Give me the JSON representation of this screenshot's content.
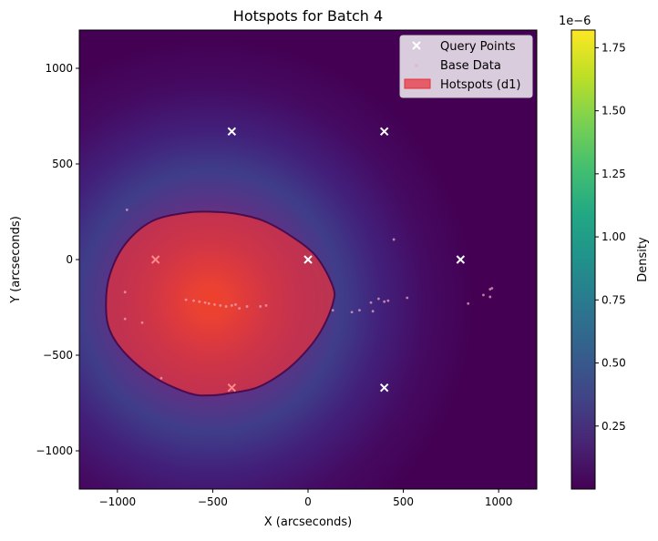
{
  "chart_data": {
    "type": "scatter",
    "title": "Hotspots for Batch 4",
    "xlabel": "X (arcseconds)",
    "ylabel": "Y (arcseconds)",
    "xlim": [
      -1200,
      1200
    ],
    "ylim": [
      -1200,
      1200
    ],
    "x_ticks": [
      -1000,
      -500,
      0,
      500,
      1000
    ],
    "x_tick_labels": [
      "−1000",
      "−500",
      "0",
      "500",
      "1000"
    ],
    "y_ticks": [
      -1000,
      -500,
      0,
      500,
      1000
    ],
    "y_tick_labels": [
      "−1000",
      "−500",
      "0",
      "500",
      "1000"
    ],
    "grid": false,
    "legend_position": "top-right",
    "legend": [
      "Query Points",
      "Base Data",
      "Hotspots (d1)"
    ],
    "density_peak": {
      "x": -510,
      "y": -220
    },
    "query_points": [
      {
        "x": -400,
        "y": 670
      },
      {
        "x": 400,
        "y": 670
      },
      {
        "x": -800,
        "y": 0
      },
      {
        "x": 0,
        "y": 0
      },
      {
        "x": 800,
        "y": 0
      },
      {
        "x": -400,
        "y": -670
      },
      {
        "x": 400,
        "y": -670
      }
    ],
    "base_data": [
      {
        "x": -950,
        "y": 260
      },
      {
        "x": -960,
        "y": -170
      },
      {
        "x": -960,
        "y": -310
      },
      {
        "x": -870,
        "y": -330
      },
      {
        "x": -770,
        "y": -620
      },
      {
        "x": -640,
        "y": -210
      },
      {
        "x": -600,
        "y": -215
      },
      {
        "x": -570,
        "y": -220
      },
      {
        "x": -540,
        "y": -225
      },
      {
        "x": -520,
        "y": -230
      },
      {
        "x": -490,
        "y": -235
      },
      {
        "x": -460,
        "y": -240
      },
      {
        "x": -430,
        "y": -245
      },
      {
        "x": -400,
        "y": -240
      },
      {
        "x": -380,
        "y": -235
      },
      {
        "x": -360,
        "y": -255
      },
      {
        "x": -320,
        "y": -245
      },
      {
        "x": -250,
        "y": -245
      },
      {
        "x": -220,
        "y": -240
      },
      {
        "x": 130,
        "y": -265
      },
      {
        "x": 230,
        "y": -275
      },
      {
        "x": 270,
        "y": -265
      },
      {
        "x": 330,
        "y": -225
      },
      {
        "x": 340,
        "y": -270
      },
      {
        "x": 370,
        "y": -205
      },
      {
        "x": 400,
        "y": -220
      },
      {
        "x": 420,
        "y": -215
      },
      {
        "x": 450,
        "y": 105
      },
      {
        "x": 520,
        "y": -200
      },
      {
        "x": 840,
        "y": -230
      },
      {
        "x": 920,
        "y": -185
      },
      {
        "x": 955,
        "y": -195
      },
      {
        "x": 955,
        "y": -155
      },
      {
        "x": 965,
        "y": -150
      }
    ],
    "hotspot_outline": [
      [
        -1060,
        -230
      ],
      [
        -1040,
        -80
      ],
      [
        -960,
        80
      ],
      [
        -820,
        200
      ],
      [
        -640,
        245
      ],
      [
        -510,
        250
      ],
      [
        -380,
        240
      ],
      [
        -240,
        205
      ],
      [
        -100,
        130
      ],
      [
        40,
        20
      ],
      [
        130,
        -140
      ],
      [
        130,
        -230
      ],
      [
        70,
        -370
      ],
      [
        -20,
        -490
      ],
      [
        -130,
        -590
      ],
      [
        -270,
        -670
      ],
      [
        -420,
        -700
      ],
      [
        -510,
        -710
      ],
      [
        -620,
        -700
      ],
      [
        -800,
        -620
      ],
      [
        -950,
        -500
      ],
      [
        -1040,
        -370
      ]
    ],
    "colorbar": {
      "label": "Density",
      "multiplier": "1e−6",
      "ticks": [
        0.25,
        0.5,
        0.75,
        1.0,
        1.25,
        1.5,
        1.75
      ],
      "tick_labels": [
        "0.25",
        "0.50",
        "0.75",
        "1.00",
        "1.25",
        "1.50",
        "1.75"
      ],
      "range": [
        0.0,
        1.82
      ]
    },
    "colors": {
      "background_low": "#440154",
      "query_marker": "#ffffff",
      "hotspot_fill": "#e8323c",
      "hotspot_edge": "#4a0c4e",
      "base_marker": "#e9a6bd"
    }
  }
}
